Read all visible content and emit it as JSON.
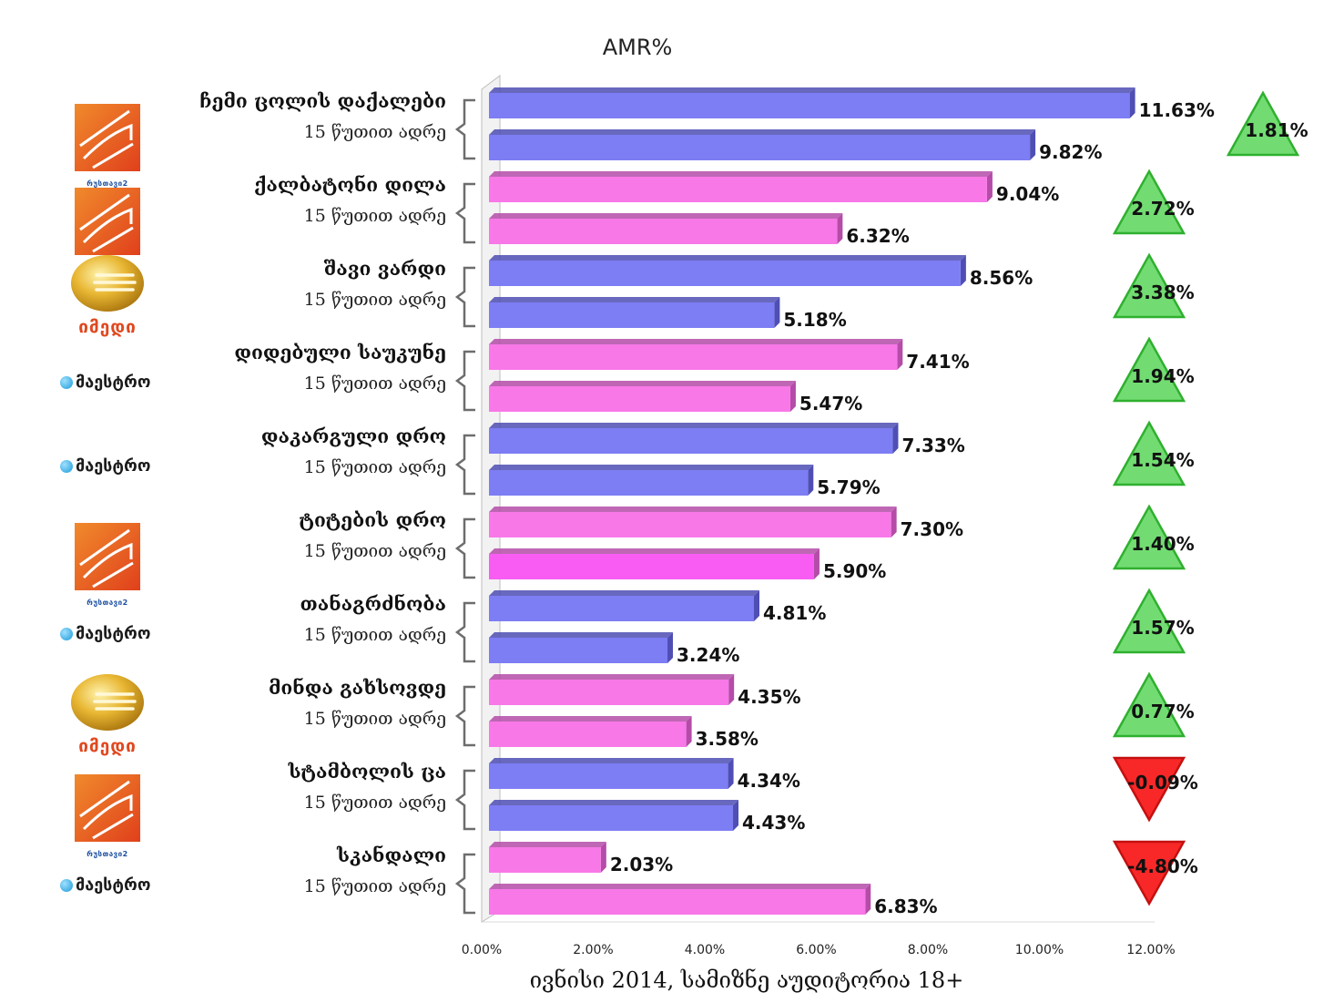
{
  "chart_data": {
    "type": "bar",
    "orientation": "horizontal",
    "title": "AMR%",
    "xlabel": "ივნისი 2014, სამიზნე აუდიტორია 18+",
    "xlim": [
      0,
      12
    ],
    "x_ticks": [
      "0.00%",
      "2.00%",
      "4.00%",
      "6.00%",
      "8.00%",
      "10.00%",
      "12.00%"
    ],
    "colors": {
      "blue": "#7d7df4",
      "blue_dark": "#4e4eb4",
      "blue_alt": "#6a6ae8",
      "pink": "#f878e8",
      "pink_dark": "#b44ca8",
      "pink_alt": "#f85cf2",
      "up": "#72dc72",
      "up_stroke": "#2fb02f",
      "down": "#f82828",
      "down_stroke": "#c41010"
    },
    "groups": [
      {
        "title": "ჩემი ცოლის დაქალები",
        "sub": "15 წუთით ადრე",
        "values": [
          11.63,
          9.82
        ],
        "labels": [
          "11.63%",
          "9.82%"
        ],
        "color": "blue",
        "delta": 1.81,
        "delta_label": "1.81%",
        "logo": "rustavi2"
      },
      {
        "title": "ქალბატონი დილა",
        "sub": "15 წუთით ადრე",
        "values": [
          9.04,
          6.32
        ],
        "labels": [
          "9.04%",
          "6.32%"
        ],
        "color": "pink",
        "delta": 2.72,
        "delta_label": "2.72%",
        "logo": "rustavi2"
      },
      {
        "title": "შავი ვარდი",
        "sub": "15 წუთით ადრე",
        "values": [
          8.56,
          5.18
        ],
        "labels": [
          "8.56%",
          "5.18%"
        ],
        "color": "blue",
        "delta": 3.38,
        "delta_label": "3.38%",
        "logo": "imedi"
      },
      {
        "title": "დიდებული საუკუნე",
        "sub": "15 წუთით ადრე",
        "values": [
          7.41,
          5.47
        ],
        "labels": [
          "7.41%",
          "5.47%"
        ],
        "color": "pink",
        "delta": 1.94,
        "delta_label": "1.94%",
        "logo": "maestro"
      },
      {
        "title": "დაკარგული დრო",
        "sub": "15 წუთით ადრე",
        "values": [
          7.33,
          5.79
        ],
        "labels": [
          "7.33%",
          "5.79%"
        ],
        "color": "blue",
        "delta": 1.54,
        "delta_label": "1.54%",
        "logo": "maestro"
      },
      {
        "title": "ტიტების დრო",
        "sub": "15 წუთით ადრე",
        "values": [
          7.3,
          5.9
        ],
        "labels": [
          "7.30%",
          "5.90%"
        ],
        "color": "pink",
        "delta": 1.4,
        "delta_label": "1.40%",
        "logo": "rustavi2"
      },
      {
        "title": "თანაგრძნობა",
        "sub": "15 წუთით ადრე",
        "values": [
          4.81,
          3.24
        ],
        "labels": [
          "4.81%",
          "3.24%"
        ],
        "color": "blue",
        "delta": 1.57,
        "delta_label": "1.57%",
        "logo": "maestro"
      },
      {
        "title": "მინდა გახსოვდე",
        "sub": "15 წუთით ადრე",
        "values": [
          4.35,
          3.58
        ],
        "labels": [
          "4.35%",
          "3.58%"
        ],
        "color": "pink",
        "delta": 0.77,
        "delta_label": "0.77%",
        "logo": "imedi"
      },
      {
        "title": "სტამბოლის ცა",
        "sub": "15 წუთით ადრე",
        "values": [
          4.34,
          4.43
        ],
        "labels": [
          "4.34%",
          "4.43%"
        ],
        "color": "blue",
        "delta": -0.09,
        "delta_label": "-0.09%",
        "logo": "rustavi2"
      },
      {
        "title": "სკანდალი",
        "sub": "15 წუთით ადრე",
        "values": [
          2.03,
          6.83
        ],
        "labels": [
          "2.03%",
          "6.83%"
        ],
        "color": "pink",
        "delta": -4.8,
        "delta_label": "-4.80%",
        "logo": "maestro"
      }
    ]
  },
  "logos": {
    "rustavi2": "რუსთავი2",
    "imedi": "იმედი",
    "maestro": "მაესტრო"
  }
}
